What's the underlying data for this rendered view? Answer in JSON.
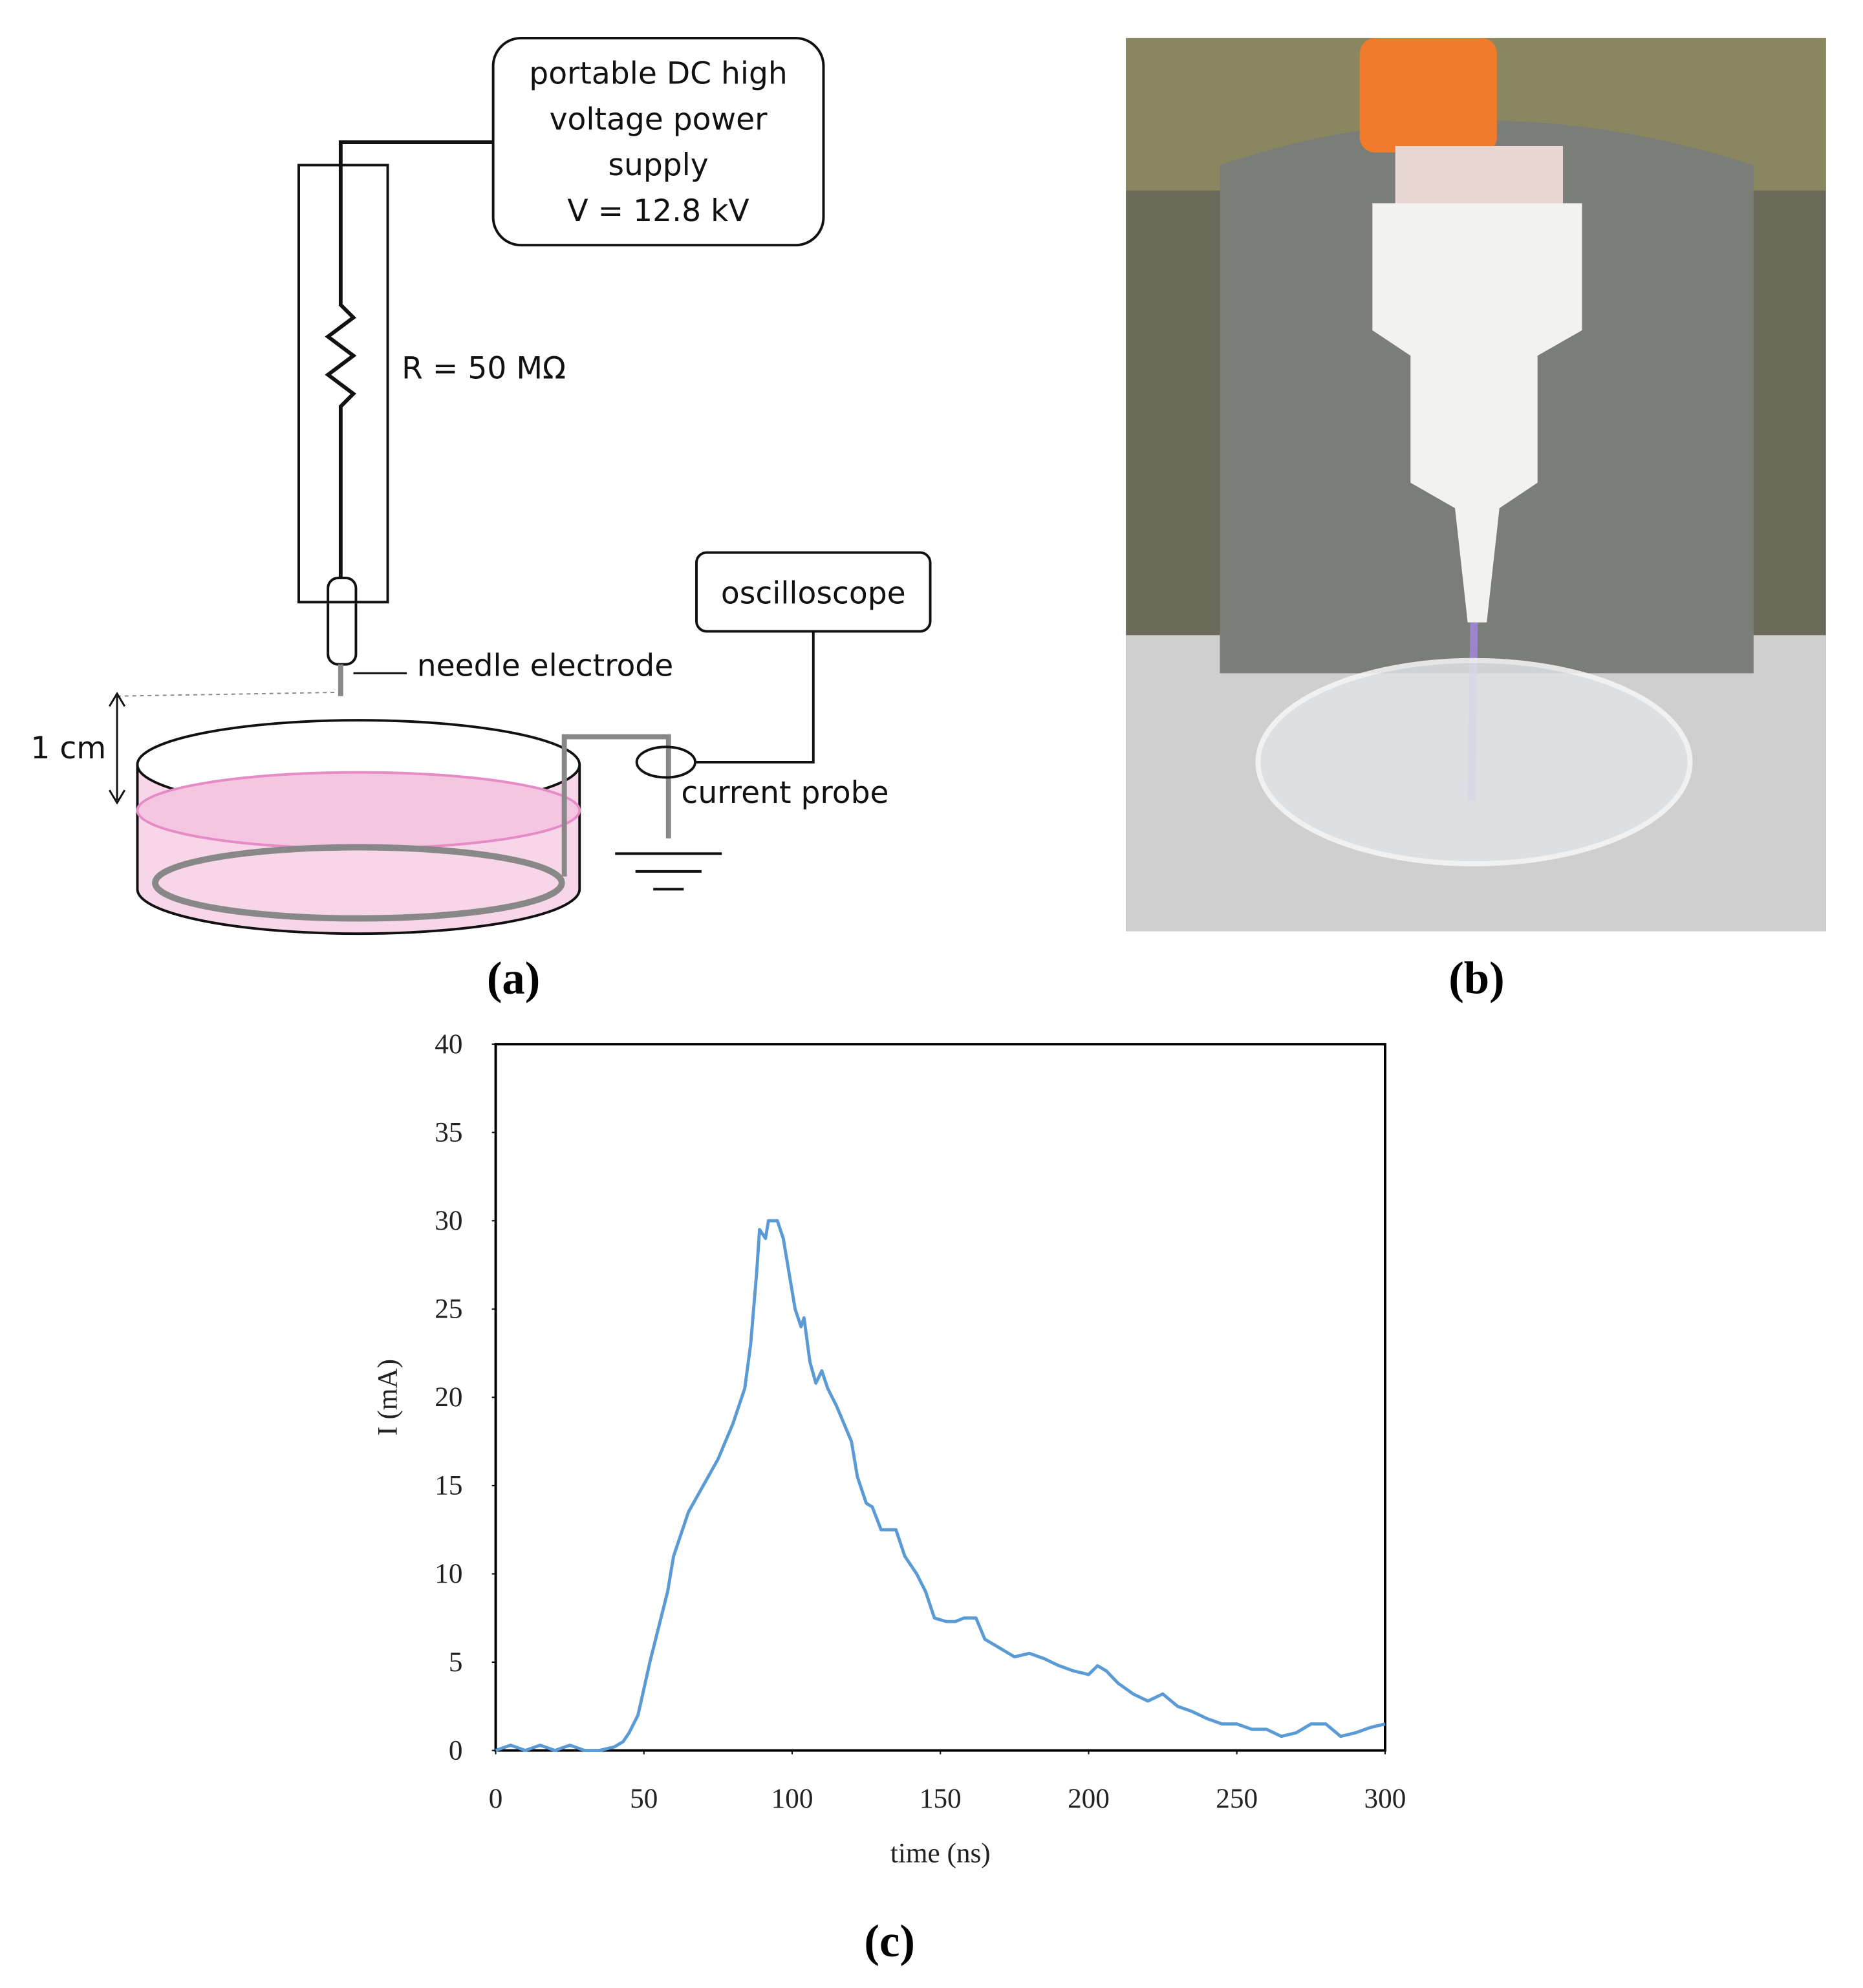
{
  "diagram": {
    "power_supply": [
      "portable DC high",
      "voltage power",
      "supply",
      "V = 12.8 kV"
    ],
    "resistor": "R = 50 MΩ",
    "needle": "needle electrode",
    "gap": "1 cm",
    "oscilloscope": "oscilloscope",
    "probe": "current probe"
  },
  "captions": [
    "(a)",
    "(b)",
    "(c)"
  ],
  "chart_data": {
    "type": "line",
    "x_label": "time (ns)",
    "y_label": "I (mA)",
    "color": "#5b9bd5",
    "xlim": [
      0,
      300
    ],
    "xticks": [
      0,
      50,
      100,
      150,
      200,
      250,
      300
    ],
    "ylim": [
      0,
      40
    ],
    "yticks": [
      0,
      5,
      10,
      15,
      20,
      25,
      30,
      35,
      40
    ],
    "x": [
      0,
      5,
      10,
      15,
      20,
      25,
      30,
      35,
      40,
      43,
      45,
      48,
      50,
      52,
      55,
      58,
      60,
      65,
      70,
      75,
      80,
      84,
      86,
      88,
      89,
      91,
      92,
      95,
      97,
      99,
      101,
      103,
      104,
      106,
      108,
      110,
      112,
      115,
      118,
      120,
      122,
      125,
      127,
      130,
      135,
      138,
      142,
      145,
      148,
      152,
      155,
      158,
      162,
      165,
      170,
      175,
      180,
      185,
      190,
      195,
      200,
      203,
      206,
      210,
      215,
      220,
      225,
      230,
      235,
      240,
      245,
      250,
      255,
      260,
      265,
      270,
      275,
      280,
      285,
      290,
      295,
      300
    ],
    "values": [
      0,
      0.3,
      0,
      0.3,
      0,
      0.3,
      0,
      0,
      0.2,
      0.5,
      1,
      2,
      3.5,
      5,
      7,
      9,
      11,
      13.5,
      15,
      16.5,
      18.5,
      20.5,
      23,
      27,
      29.5,
      29,
      30,
      30,
      29,
      27,
      25,
      24,
      24.5,
      22,
      20.8,
      21.5,
      20.5,
      19.5,
      18.3,
      17.5,
      15.5,
      14,
      13.8,
      12.5,
      12.5,
      11,
      10,
      9,
      7.5,
      7.3,
      7.3,
      7.5,
      7.5,
      6.3,
      5.8,
      5.3,
      5.5,
      5.2,
      4.8,
      4.5,
      4.3,
      4.8,
      4.5,
      3.8,
      3.2,
      2.8,
      3.2,
      2.5,
      2.2,
      1.8,
      1.5,
      1.5,
      1.2,
      1.2,
      0.8,
      1,
      1.5,
      1.5,
      0.8,
      1,
      1.3,
      1.5
    ]
  }
}
